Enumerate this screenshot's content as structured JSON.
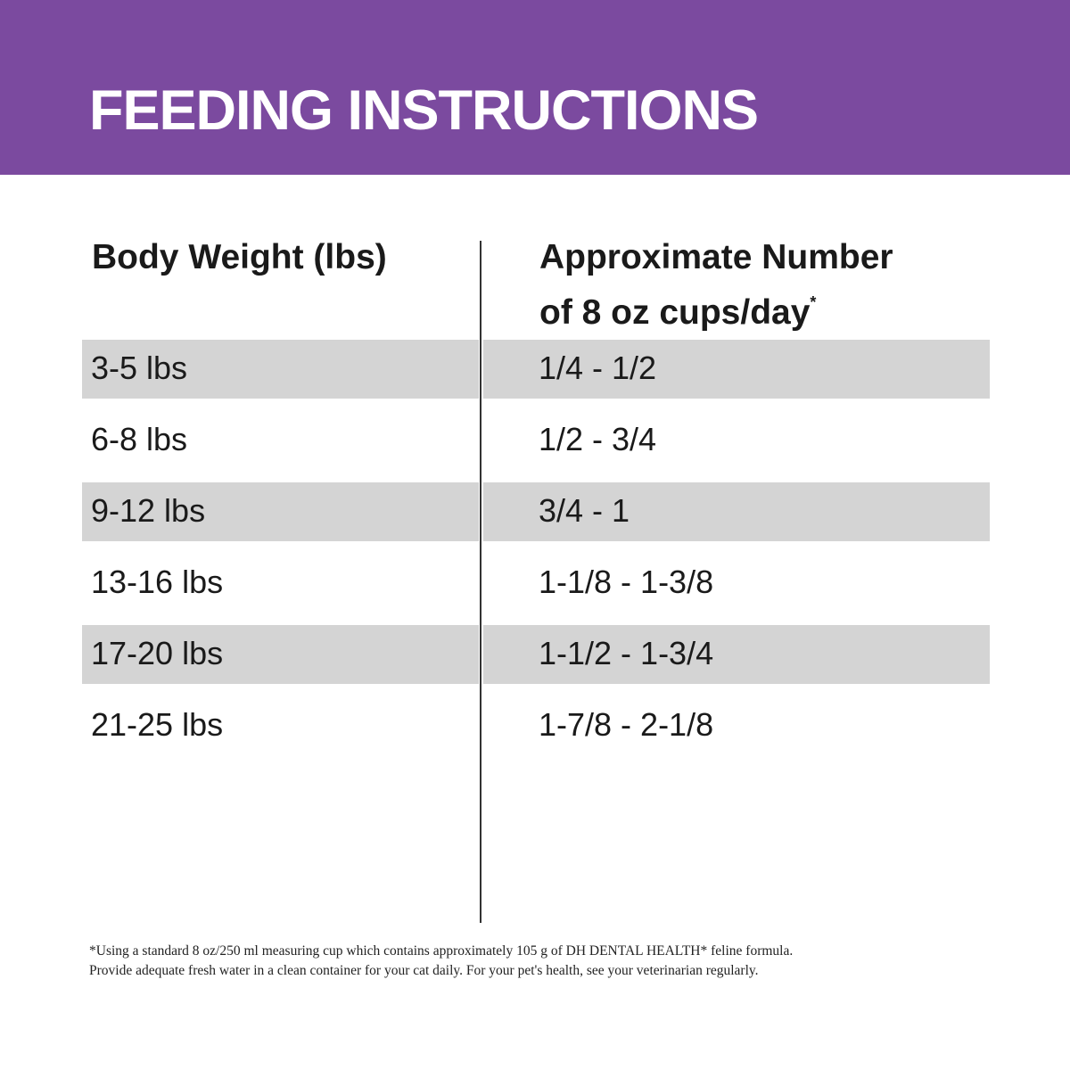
{
  "header": {
    "title": "FEEDING INSTRUCTIONS"
  },
  "table": {
    "columns": [
      {
        "lines": [
          "Body Weight (lbs)"
        ]
      },
      {
        "lines": [
          "Approximate Number",
          "of 8 oz cups/day"
        ],
        "mark": "*"
      }
    ],
    "rows": [
      [
        "3-5 lbs",
        "1/4 - 1/2"
      ],
      [
        "6-8 lbs",
        "1/2 - 3/4"
      ],
      [
        "9-12 lbs",
        "3/4 - 1"
      ],
      [
        "13-16 lbs",
        "1-1/8 - 1-3/8"
      ],
      [
        "17-20 lbs",
        "1-1/2 - 1-3/4"
      ],
      [
        "21-25 lbs",
        "1-7/8 - 2-1/8"
      ]
    ]
  },
  "footnote": [
    "*Using a standard 8 oz/250 ml measuring cup which contains approximately 105 g of DH DENTAL HEALTH* feline formula.",
    "Provide adequate fresh water in a clean container for your cat daily. For your pet's health, see your veterinarian regularly."
  ]
}
